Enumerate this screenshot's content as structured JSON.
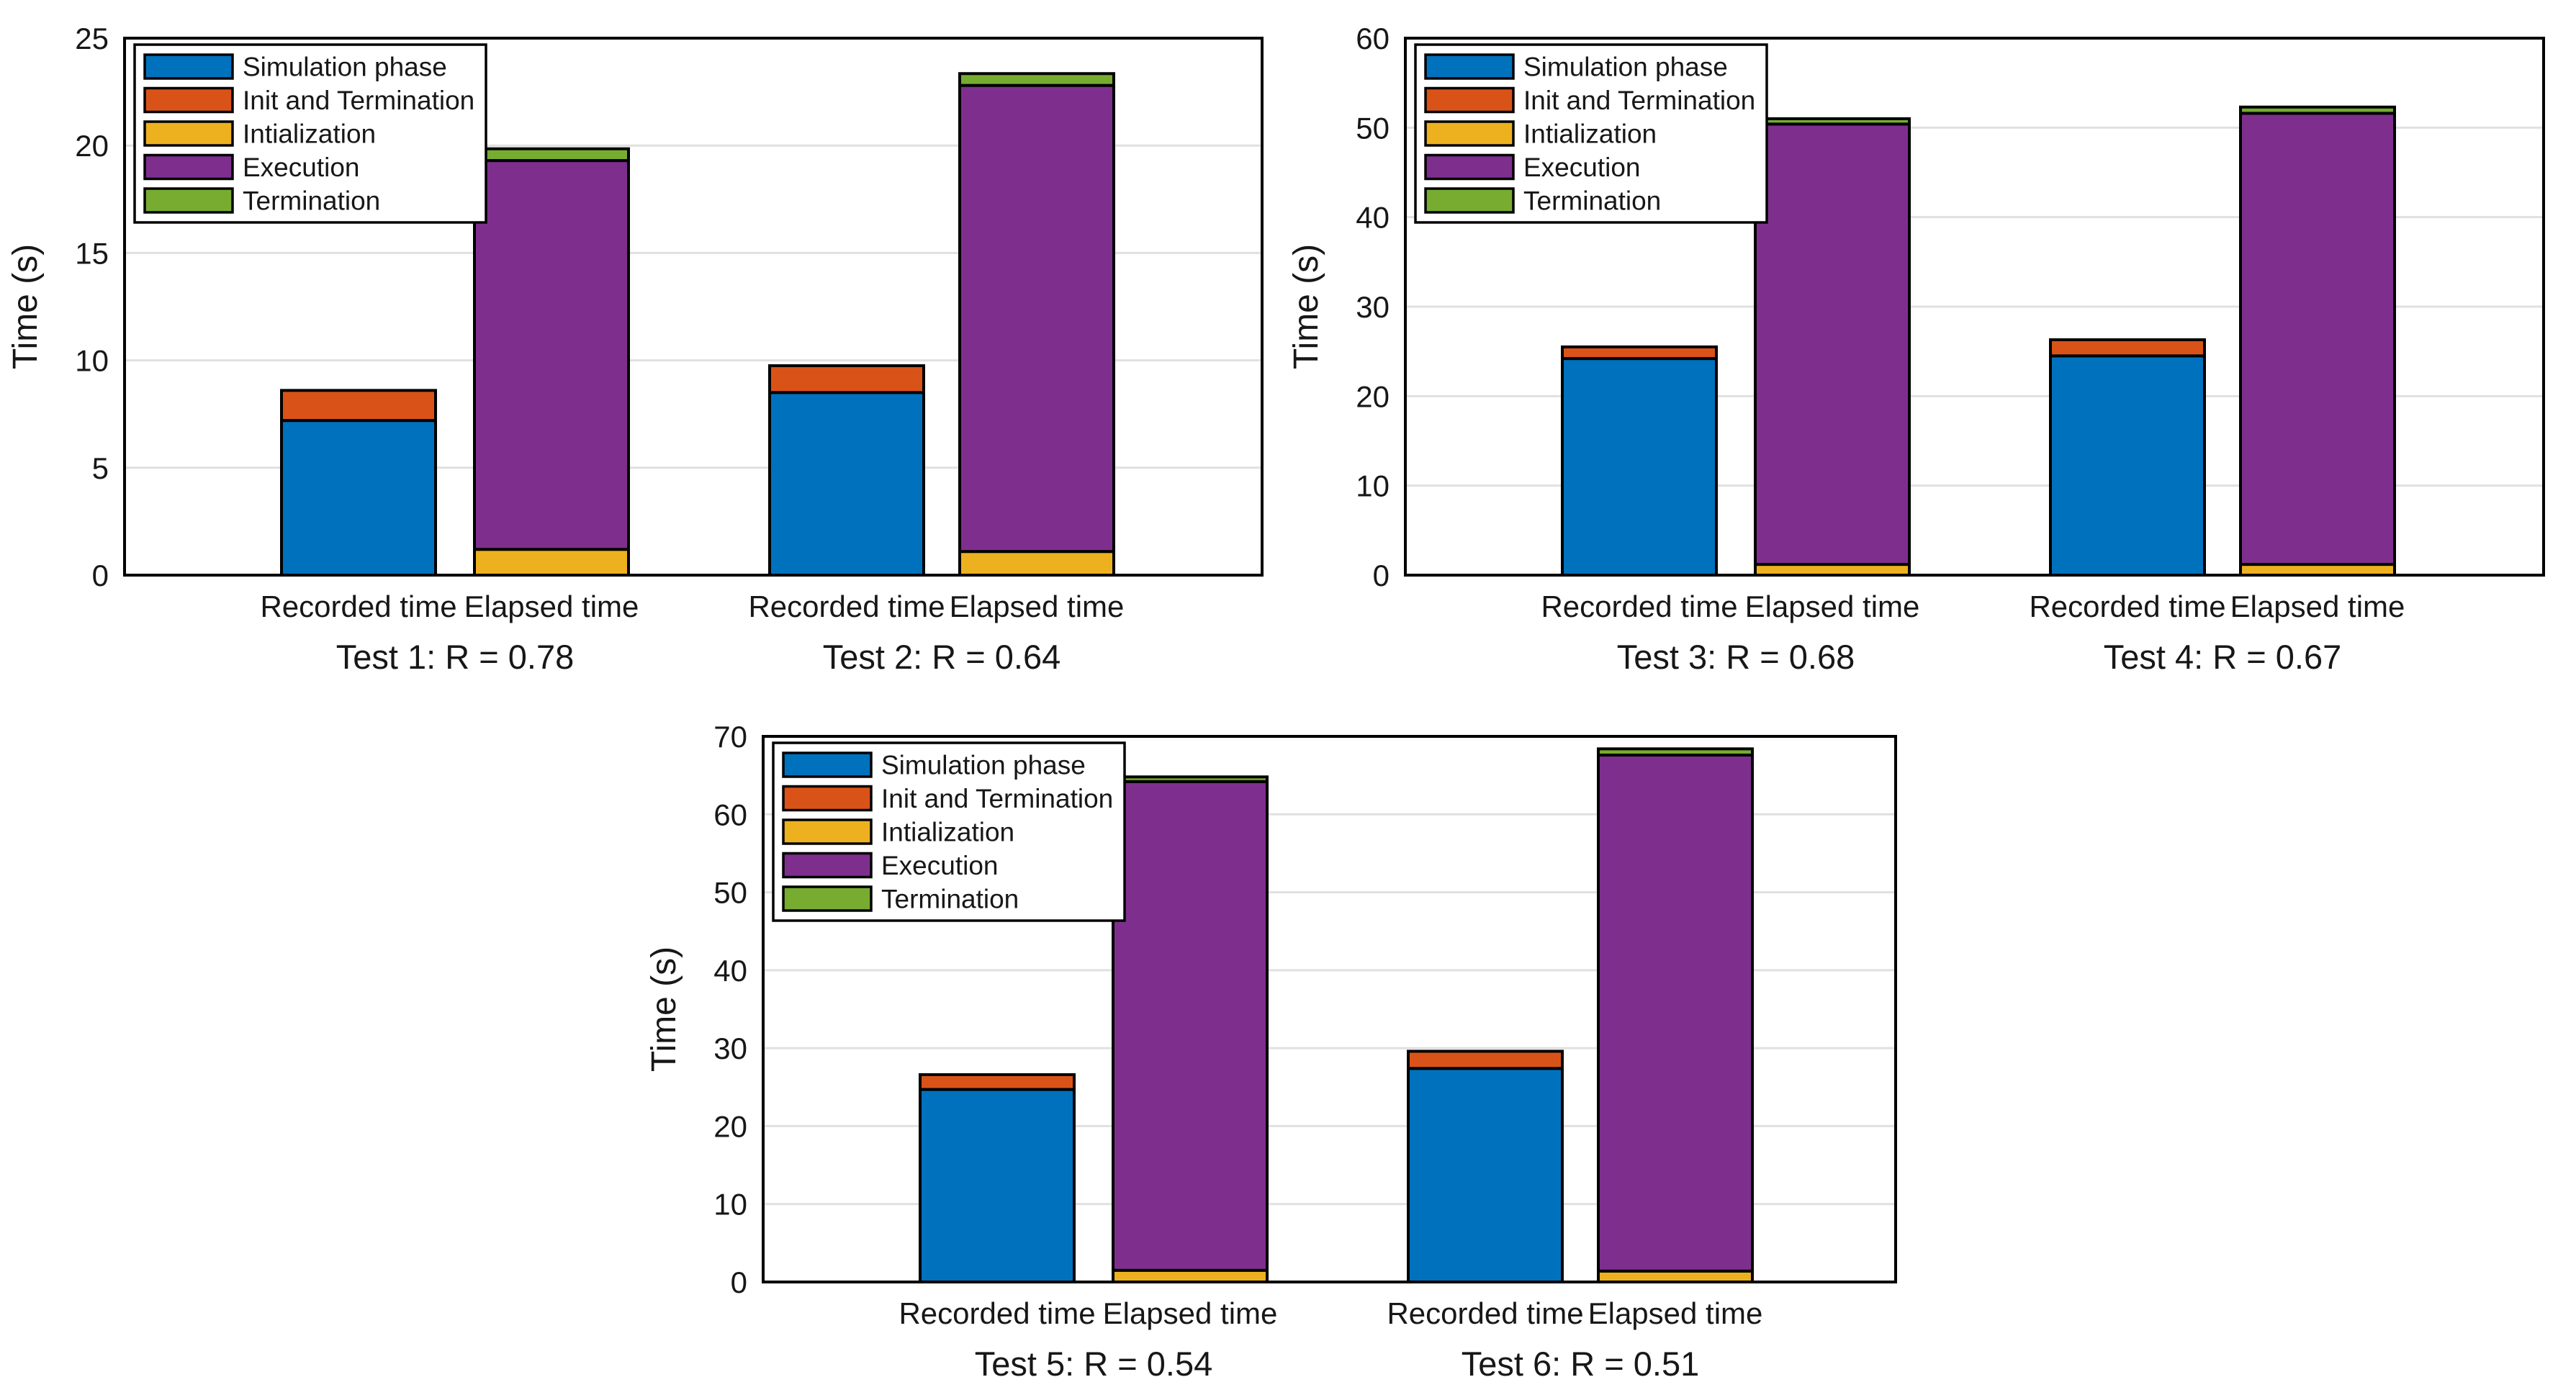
{
  "figure": {
    "background": "#ffffff",
    "axis_color": "#000000",
    "grid_color": "#e0e0e0",
    "text_color": "#171717",
    "bar_edge_color": "#000000"
  },
  "palette": {
    "Simulation phase": "#0072BD",
    "Init and Termination": "#D95319",
    "Intialization": "#EDB120",
    "Execution": "#7E2F8E",
    "Termination": "#77AC30"
  },
  "legend": {
    "items": [
      {
        "label": "Simulation phase",
        "color": "#0072BD"
      },
      {
        "label": "Init and Termination",
        "color": "#D95319"
      },
      {
        "label": "Intialization",
        "color": "#EDB120"
      },
      {
        "label": "Execution",
        "color": "#7E2F8E"
      },
      {
        "label": "Termination",
        "color": "#77AC30"
      }
    ],
    "position": "upper-left"
  },
  "chart_data": [
    {
      "type": "bar",
      "stacked": true,
      "ylabel": "Time (s)",
      "ylim": [
        0,
        25
      ],
      "yticks": [
        0,
        5,
        10,
        15,
        20,
        25
      ],
      "grid": "horizontal",
      "legend_position": "upper-left",
      "groups": [
        {
          "label": "Test 1: R = 0.78",
          "bars": [
            {
              "label": "Recorded time",
              "segments": [
                [
                  "Simulation phase",
                  7.2
                ],
                [
                  "Init and Termination",
                  1.4
                ]
              ]
            },
            {
              "label": "Elapsed time",
              "segments": [
                [
                  "Intialization",
                  1.2
                ],
                [
                  "Execution",
                  18.1
                ],
                [
                  "Termination",
                  0.55
                ]
              ]
            }
          ]
        },
        {
          "label": "Test 2: R = 0.64",
          "bars": [
            {
              "label": "Recorded time",
              "segments": [
                [
                  "Simulation phase",
                  8.5
                ],
                [
                  "Init and Termination",
                  1.25
                ]
              ]
            },
            {
              "label": "Elapsed time",
              "segments": [
                [
                  "Intialization",
                  1.1
                ],
                [
                  "Execution",
                  21.7
                ],
                [
                  "Termination",
                  0.55
                ]
              ]
            }
          ]
        }
      ]
    },
    {
      "type": "bar",
      "stacked": true,
      "ylabel": "Time (s)",
      "ylim": [
        0,
        60
      ],
      "yticks": [
        0,
        10,
        20,
        30,
        40,
        50,
        60
      ],
      "grid": "horizontal",
      "legend_position": "upper-left",
      "groups": [
        {
          "label": "Test 3: R = 0.68",
          "bars": [
            {
              "label": "Recorded time",
              "segments": [
                [
                  "Simulation phase",
                  24.2
                ],
                [
                  "Init and Termination",
                  1.3
                ]
              ]
            },
            {
              "label": "Elapsed time",
              "segments": [
                [
                  "Intialization",
                  1.2
                ],
                [
                  "Execution",
                  49.2
                ],
                [
                  "Termination",
                  0.6
                ]
              ]
            }
          ]
        },
        {
          "label": "Test 4: R = 0.67",
          "bars": [
            {
              "label": "Recorded time",
              "segments": [
                [
                  "Simulation phase",
                  24.5
                ],
                [
                  "Init and Termination",
                  1.8
                ]
              ]
            },
            {
              "label": "Elapsed time",
              "segments": [
                [
                  "Intialization",
                  1.2
                ],
                [
                  "Execution",
                  50.4
                ],
                [
                  "Termination",
                  0.7
                ]
              ]
            }
          ]
        }
      ]
    },
    {
      "type": "bar",
      "stacked": true,
      "ylabel": "Time (s)",
      "ylim": [
        0,
        70
      ],
      "yticks": [
        0,
        10,
        20,
        30,
        40,
        50,
        60,
        70
      ],
      "grid": "horizontal",
      "legend_position": "upper-left",
      "groups": [
        {
          "label": "Test 5: R = 0.54",
          "bars": [
            {
              "label": "Recorded time",
              "segments": [
                [
                  "Simulation phase",
                  24.7
                ],
                [
                  "Init and Termination",
                  1.9
                ]
              ]
            },
            {
              "label": "Elapsed time",
              "segments": [
                [
                  "Intialization",
                  1.5
                ],
                [
                  "Execution",
                  62.7
                ],
                [
                  "Termination",
                  0.6
                ]
              ]
            }
          ]
        },
        {
          "label": "Test 6: R = 0.51",
          "bars": [
            {
              "label": "Recorded time",
              "segments": [
                [
                  "Simulation phase",
                  27.4
                ],
                [
                  "Init and Termination",
                  2.2
                ]
              ]
            },
            {
              "label": "Elapsed time",
              "segments": [
                [
                  "Intialization",
                  1.4
                ],
                [
                  "Execution",
                  66.2
                ],
                [
                  "Termination",
                  0.8
                ]
              ]
            }
          ]
        }
      ]
    }
  ]
}
